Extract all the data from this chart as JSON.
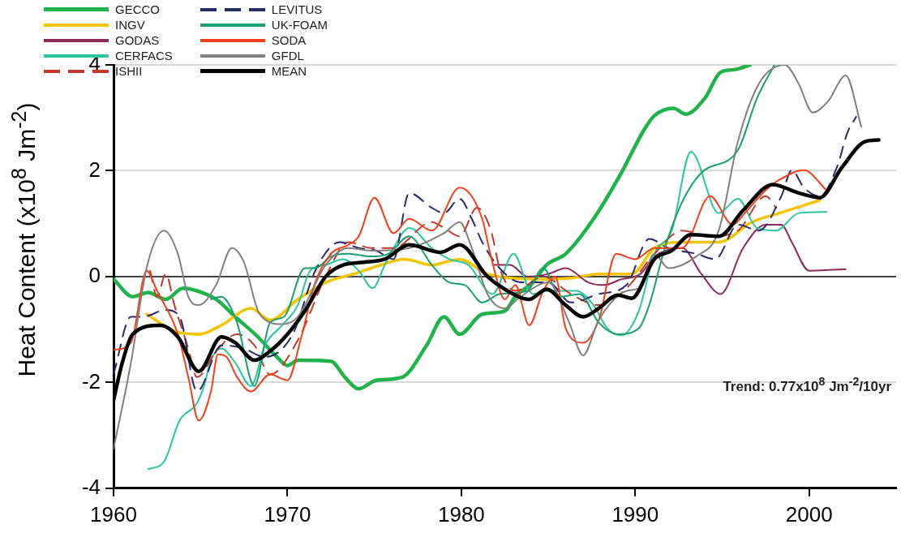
{
  "chart_data": {
    "type": "line",
    "ylabel": "Heat Content  (x10$^{8}$ Jm$^{-2}$)",
    "annotations": [
      "Trend: 0.77x10$^{8}$ Jm$^{-2}$/10yr"
    ],
    "xlim": [
      1960,
      2005
    ],
    "ylim": [
      -4,
      4
    ],
    "xticks": [
      1960,
      1970,
      1980,
      1990,
      2000
    ],
    "yticks": [
      -4,
      -2,
      0,
      2,
      4
    ],
    "grid": "y",
    "legend": "top left",
    "marker": "none",
    "series": [
      {
        "name": "GECCO",
        "color": "#22b24c",
        "line_style": "solid",
        "x": [
          1960,
          1961.1,
          1962,
          1963,
          1964,
          1964.8,
          1965.9,
          1967,
          1968.3,
          1969.4,
          1970,
          1970.6,
          1972.5,
          1973.3,
          1974.1,
          1975.1,
          1976.6,
          1978,
          1979,
          1979.9,
          1981.2,
          1982.5,
          1983.1,
          1984.1,
          1984.9,
          1986,
          1987.6,
          1989.2,
          1990.5,
          1991.1,
          1992.2,
          1992.9,
          1994,
          1994.9,
          1995.7,
          1996.6
        ],
        "values": [
          -0.05,
          -0.38,
          -0.3,
          -0.43,
          -0.22,
          -0.27,
          -0.43,
          -0.76,
          -1.14,
          -1.52,
          -1.68,
          -1.58,
          -1.6,
          -1.9,
          -2.12,
          -1.96,
          -1.9,
          -1.3,
          -0.76,
          -1.09,
          -0.71,
          -0.65,
          -0.38,
          -0.11,
          0.22,
          0.43,
          1.09,
          1.96,
          2.77,
          3.04,
          3.18,
          3.07,
          3.37,
          3.86,
          3.91,
          4.0
        ]
      },
      {
        "name": "INGV",
        "color": "#f5c400",
        "line_style": "solid",
        "x": [
          1961.9,
          1963.5,
          1964.9,
          1966.2,
          1967.9,
          1969,
          1970.6,
          1972.2,
          1973.8,
          1975.4,
          1976.7,
          1978.3,
          1979.9,
          1981.5,
          1984.7,
          1986.3,
          1987.9,
          1989.8,
          1991.1,
          1992.7,
          1994.8,
          1996.7,
          1998.3,
          2000.6
        ],
        "values": [
          -0.71,
          -1.03,
          -1.09,
          -0.92,
          -0.6,
          -0.82,
          -0.43,
          -0.11,
          0.05,
          0.22,
          0.33,
          0.22,
          0.33,
          0.05,
          -0.05,
          -0.03,
          0.05,
          0.05,
          0.54,
          0.65,
          0.65,
          1.03,
          1.2,
          1.44
        ]
      },
      {
        "name": "GODAS",
        "color": "#8b2a5a",
        "line_style": "solid",
        "x": [
          1981.8,
          1982.8,
          1983.8,
          1985,
          1986,
          1987.3,
          1988.2,
          1989.2,
          1990.3,
          1991.1,
          1992.7,
          1993.8,
          1994.9,
          1996.2,
          1997.5,
          1998.4,
          1999,
          2000,
          2002.1
        ],
        "values": [
          0.22,
          0.22,
          0,
          0.05,
          0.16,
          -0.11,
          -0.16,
          -0.05,
          0.05,
          0.38,
          0.54,
          0.05,
          -0.33,
          0.54,
          0.98,
          0.98,
          0.65,
          0.11,
          0.14
        ]
      },
      {
        "name": "CERFACS",
        "color": "#2ec4a0",
        "line_style": "solid",
        "x": [
          1962,
          1962.9,
          1963.8,
          1964.8,
          1965.2,
          1965.6,
          1966.2,
          1967,
          1967.9,
          1968.7,
          1969.7,
          1970.6,
          1971.3,
          1972.2,
          1973.2,
          1974.1,
          1974.9,
          1975.6,
          1976.1,
          1977,
          1978.3,
          1979.3,
          1980.4,
          1981.8,
          1983,
          1984.1,
          1985,
          1986.6,
          1987.6,
          1988.4,
          1989.2,
          1990.2,
          1991.1,
          1992.1,
          1993.2,
          1994.8,
          1995.9,
          1997,
          1998.1,
          1999.4,
          2001
        ],
        "values": [
          -3.64,
          -3.5,
          -2.72,
          -2.39,
          -2.07,
          -1.58,
          -1.36,
          -1.63,
          -2.07,
          -1.3,
          -0.92,
          -0.54,
          0.11,
          0.22,
          0.33,
          0.11,
          -0.22,
          0.22,
          0.54,
          0.92,
          0.54,
          0.33,
          0.22,
          -0.33,
          0.43,
          -0.33,
          -0.27,
          -0.27,
          -0.54,
          -0.98,
          -1.11,
          -0.65,
          0.43,
          0.87,
          2.36,
          1.2,
          1.47,
          0.92,
          0.87,
          1.2,
          1.22
        ]
      },
      {
        "name": "ISHII",
        "color": "#c0392b",
        "line_style": "dashed",
        "x": [
          1962.1,
          1962.5,
          1963,
          1963.5,
          1964.3,
          1964.8,
          1965.9,
          1967.1,
          1968.1,
          1969,
          1970.6,
          1972.2,
          1973.5,
          1974.8,
          1976.1,
          1978.3,
          1979,
          1979.9,
          1980.9,
          1981.7,
          1982.2,
          1983.1,
          1984.7,
          1986.3,
          1987.9,
          1989.5,
          1991.1,
          1992.7,
          1994.3,
          1995.9,
          1997.5,
          1998.1
        ],
        "values": [
          0.11,
          -0.38,
          0.05,
          -0.54,
          -1.36,
          -1.9,
          -1.41,
          -1.09,
          -1.3,
          -1.85,
          -1.2,
          0,
          0.65,
          0.54,
          0.54,
          1.03,
          0.92,
          0.76,
          1.3,
          0.87,
          0.16,
          -0.27,
          0,
          -0.33,
          -0.54,
          -0.22,
          0.43,
          0.87,
          0.76,
          0.87,
          1.52,
          1.3
        ]
      },
      {
        "name": "LEVITUS",
        "color": "#2a2a6a",
        "line_style": "dashed",
        "x": [
          1960,
          1961,
          1961.7,
          1963,
          1963.8,
          1964.8,
          1966.2,
          1967.5,
          1968.7,
          1970.3,
          1971.6,
          1973,
          1974.1,
          1975.1,
          1976.1,
          1977,
          1978.3,
          1979,
          1979.9,
          1980.6,
          1981.2,
          1982.2,
          1983.4,
          1985,
          1986.3,
          1987.9,
          1989.5,
          1990.8,
          1991.9,
          1993.5,
          1994.6,
          1995.9,
          1997.1,
          1998.4,
          1999,
          1999.7,
          2000.6,
          2001.6,
          2002.2,
          2002.7
        ],
        "values": [
          -1.85,
          -0.76,
          -0.76,
          -0.63,
          -0.76,
          -2.17,
          -1.3,
          -1.36,
          -1.52,
          -1.09,
          0.11,
          0.65,
          0.54,
          0.49,
          0.33,
          1.58,
          1.3,
          1.2,
          1.47,
          1.09,
          0.65,
          0.16,
          -0.11,
          -0.11,
          -0.49,
          -0.33,
          -0.16,
          0.71,
          0.54,
          0.43,
          0.33,
          0.98,
          0.87,
          1.52,
          2.01,
          1.68,
          1.52,
          2.07,
          2.72,
          3.02
        ]
      },
      {
        "name": "UK-FOAM",
        "color": "#1aa070",
        "line_style": "solid",
        "x": [
          1965.6,
          1966.2,
          1967.1,
          1968.1,
          1969,
          1969.8,
          1971,
          1971.6,
          1972.5,
          1973.5,
          1974.8,
          1975.8,
          1977,
          1978.3,
          1979.3,
          1980.2,
          1981.2,
          1982.2,
          1983.8,
          1984.7,
          1985.7,
          1986.8,
          1987.9,
          1989,
          1990.2,
          1990.8,
          1991.7,
          1992.7,
          1993.8,
          1995.9,
          1997,
          1998
        ],
        "values": [
          -0.43,
          -0.38,
          -0.87,
          -2.07,
          -0.87,
          -0.76,
          0.16,
          0.16,
          0.38,
          0.43,
          0.38,
          0.43,
          0.76,
          0.22,
          -0.11,
          -0.16,
          -0.49,
          -0.33,
          -0.27,
          0.16,
          -0.38,
          -0.33,
          -0.87,
          -1.09,
          -0.98,
          -0.54,
          0.54,
          1.41,
          1.96,
          2.39,
          3.37,
          4.0
        ]
      },
      {
        "name": "SODA",
        "color": "#f0401e",
        "line_style": "solid",
        "x": [
          1960,
          1961,
          1961.9,
          1962.5,
          1963.7,
          1964.3,
          1964.9,
          1965.6,
          1966,
          1966.5,
          1967.1,
          1967.9,
          1969,
          1970,
          1970.8,
          1971.6,
          1972.5,
          1973.5,
          1974.1,
          1975,
          1976.1,
          1977,
          1978.3,
          1979.9,
          1981.2,
          1981.7,
          1982.5,
          1983.1,
          1983.9,
          1984.7,
          1985.4,
          1986,
          1987,
          1987.9,
          1988.9,
          1990,
          1991.1,
          1992.7,
          1994.3,
          1995.6,
          1996.3,
          1997.5,
          1998.4,
          1999.7,
          2001
        ],
        "values": [
          -1.39,
          -1.25,
          0.11,
          -0.27,
          -1.09,
          -1.9,
          -2.72,
          -2.17,
          -1.47,
          -1.52,
          -1.9,
          -2.17,
          -1.85,
          -1.96,
          -1.14,
          -0.11,
          0.43,
          0.6,
          0.76,
          1.49,
          0.82,
          1.09,
          0.87,
          1.68,
          1.09,
          0.38,
          -0.43,
          -0.16,
          -0.92,
          -0.27,
          0,
          -0.98,
          -1.25,
          -0.82,
          0.43,
          0.33,
          0.54,
          0.54,
          1.52,
          0.98,
          1.2,
          1.63,
          1.85,
          2.01,
          1.63
        ]
      },
      {
        "name": "GFDL",
        "color": "#808080",
        "line_style": "solid",
        "x": [
          1960,
          1961,
          1961.9,
          1962.9,
          1963.7,
          1964.3,
          1964.9,
          1965.9,
          1966.8,
          1967.5,
          1968.4,
          1969.7,
          1970.6,
          1972.2,
          1973.5,
          1974.8,
          1977,
          1979,
          1979.9,
          1980.6,
          1981.5,
          1982.5,
          1983.4,
          1985,
          1986.2,
          1987,
          1987.9,
          1989.5,
          1990.2,
          1991.1,
          1991.9,
          1993.5,
          1994.8,
          1995.9,
          1997.1,
          1998.6,
          1999.4,
          2000.2,
          2001.1,
          2002.1,
          2003
        ],
        "values": [
          -3.26,
          -1.63,
          0.16,
          0.87,
          0.43,
          -0.38,
          -0.54,
          -0.16,
          0.54,
          0.27,
          -0.71,
          -0.9,
          -0.76,
          0.22,
          0.54,
          0.49,
          0.54,
          0.82,
          1.03,
          0.54,
          -0.33,
          -0.6,
          -0.38,
          -0.11,
          -0.87,
          -1.49,
          -0.82,
          -0.27,
          -0.22,
          0.43,
          0.16,
          0.38,
          0.87,
          2.55,
          3.64,
          4.0,
          3.64,
          3.1,
          3.32,
          3.8,
          2.83
        ]
      },
      {
        "name": "MEAN",
        "color": "#000000",
        "line_style": "solid",
        "x": [
          1960,
          1960.5,
          1961.1,
          1962.7,
          1963.7,
          1964.9,
          1966.2,
          1967,
          1968.1,
          1969,
          1970,
          1971,
          1972.2,
          1973.2,
          1974.4,
          1975.6,
          1977,
          1978.8,
          1979.9,
          1981.5,
          1982.5,
          1983.9,
          1984.9,
          1986,
          1987,
          1987.9,
          1989,
          1989.8,
          1991.1,
          1992.1,
          1993.2,
          1994.8,
          1996.2,
          1997.9,
          1999.4,
          2000.6,
          2001.9,
          2003.2,
          2004
        ],
        "values": [
          -2.34,
          -1.63,
          -1.09,
          -0.92,
          -1.14,
          -1.79,
          -1.14,
          -1.25,
          -1.58,
          -1.41,
          -1.09,
          -0.65,
          0,
          0.22,
          0.27,
          0.33,
          0.6,
          0.46,
          0.6,
          0,
          -0.24,
          -0.43,
          -0.24,
          -0.54,
          -0.76,
          -0.6,
          -0.35,
          -0.41,
          0.33,
          0.49,
          0.79,
          0.76,
          1.25,
          1.74,
          1.58,
          1.49,
          2.07,
          2.55,
          2.58
        ]
      }
    ]
  }
}
